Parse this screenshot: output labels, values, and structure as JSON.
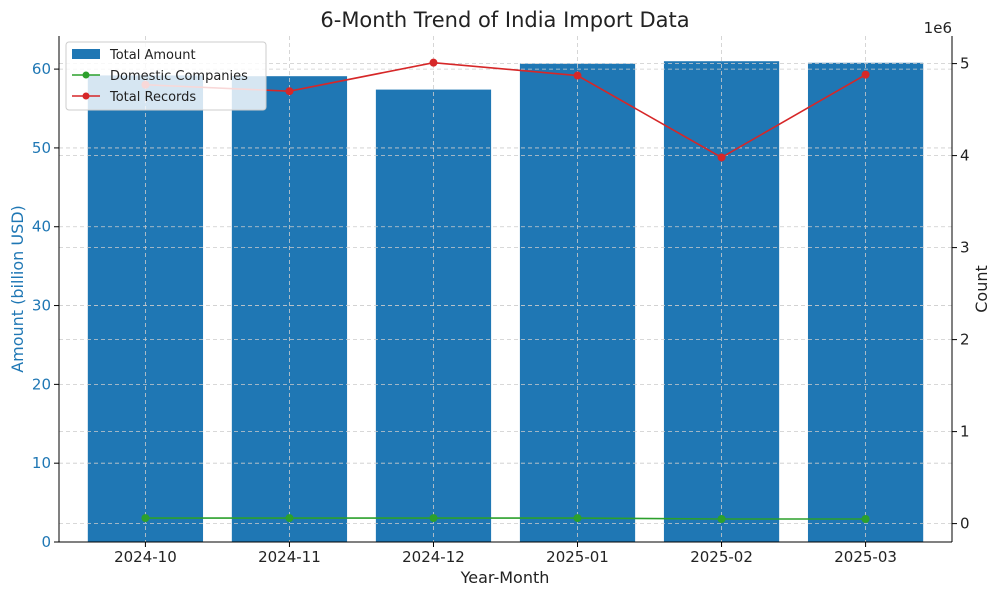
{
  "chart_data": {
    "type": "bar",
    "title": "6-Month Trend of India Import Data",
    "xlabel": "Year-Month",
    "ylabel": "Amount (billion USD)",
    "y2label": "Count",
    "y2_offset_label": "1e6",
    "categories": [
      "2024-10",
      "2024-11",
      "2024-12",
      "2025-01",
      "2025-02",
      "2025-03"
    ],
    "ylim": [
      0,
      64.2
    ],
    "y_ticks": [
      0,
      10,
      20,
      30,
      40,
      50,
      60
    ],
    "y2lim": [
      -0.2,
      5.3
    ],
    "y2_ticks": [
      0,
      1,
      2,
      3,
      4,
      5
    ],
    "grid": true,
    "legend_position": "top-left",
    "series": [
      {
        "name": "Total Amount",
        "type": "bar",
        "axis": "left",
        "color": "#1f77b4",
        "values": [
          59.2,
          59.1,
          57.4,
          60.7,
          61.0,
          60.8
        ]
      },
      {
        "name": "Domestic Companies",
        "type": "line",
        "axis": "right",
        "color": "#2ca02c",
        "values": [
          0.06,
          0.06,
          0.06,
          0.06,
          0.05,
          0.05
        ]
      },
      {
        "name": "Total Records",
        "type": "line",
        "axis": "right",
        "color": "#d62728",
        "values": [
          4.77,
          4.7,
          5.01,
          4.87,
          3.98,
          4.88
        ]
      }
    ],
    "colors": {
      "left_axis": "#1f77b4",
      "right_axis": "#222222",
      "grid": "#cccccc"
    }
  }
}
